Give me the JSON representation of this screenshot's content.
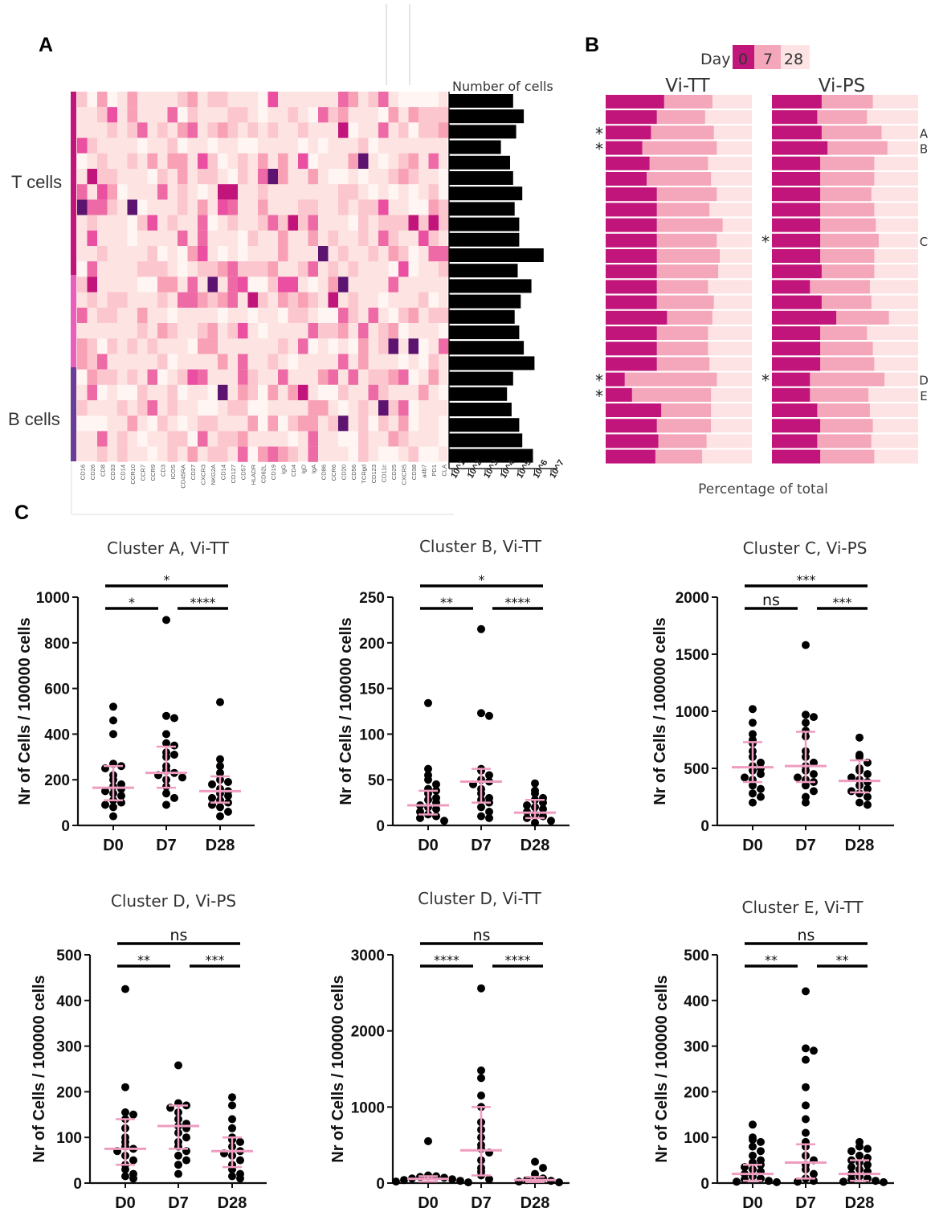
{
  "panels": {
    "a": "A",
    "b": "B",
    "c": "C"
  },
  "heatmap": {
    "row_labels": [
      "T cells",
      "B cells"
    ],
    "markers": [
      "CD16",
      "CD26",
      "CD8",
      "CD33",
      "CD14",
      "CCR10",
      "CCR7",
      "CCR9",
      "CD3",
      "ICOS",
      "CD45RA",
      "CD27",
      "CXCR3",
      "NKG2A",
      "CD14",
      "CD127",
      "CD57",
      "HLADR",
      "CD62L",
      "CD19",
      "IgG",
      "CD4",
      "IgD",
      "IgA",
      "CD86",
      "CCR6",
      "CD20",
      "CD56",
      "TCRgd",
      "CD123",
      "CD11c",
      "CD25",
      "CXCR5",
      "CD38",
      "a4b7",
      "PD1",
      "CLA"
    ],
    "bar_title": "Number of cells",
    "bar_ticks": [
      "10^1",
      "10^2",
      "10^3",
      "10^4",
      "10^5",
      "10^6",
      "10^7"
    ],
    "bar_log10_values": [
      4.8,
      5.5,
      5.0,
      4.0,
      4.6,
      4.8,
      5.4,
      4.9,
      5.2,
      5.2,
      6.8,
      5.1,
      6.0,
      5.3,
      4.9,
      5.2,
      5.5,
      6.2,
      4.8,
      4.4,
      4.7,
      5.2,
      5.4,
      6.1
    ]
  },
  "bars": {
    "legend_label": "Day",
    "legend_days": [
      "0",
      "7",
      "28"
    ],
    "colors": {
      "d0": "#c2157b",
      "d7": "#f4a6bb",
      "d28": "#fde3e3"
    },
    "groups": [
      "Vi-TT",
      "Vi-PS"
    ],
    "xlabel": "Percentage of total",
    "cluster_labels": [
      "A",
      "B",
      "C",
      "D",
      "E"
    ],
    "star": "*",
    "vitt_d0": [
      40,
      35,
      31,
      25,
      30,
      28,
      35,
      35,
      35,
      35,
      35,
      35,
      35,
      35,
      42,
      35,
      35,
      35,
      13,
      18,
      38,
      35,
      36,
      34
    ],
    "vitt_d7": [
      33,
      33,
      43,
      51,
      40,
      44,
      41,
      36,
      45,
      41,
      43,
      42,
      35,
      39,
      31,
      35,
      35,
      36,
      63,
      54,
      34,
      37,
      33,
      32
    ],
    "vips_d0": [
      34,
      31,
      34,
      38,
      33,
      33,
      33,
      33,
      33,
      33,
      33,
      34,
      26,
      34,
      44,
      33,
      33,
      33,
      26,
      26,
      31,
      33,
      31,
      33
    ],
    "vips_d7": [
      35,
      34,
      41,
      41,
      37,
      37,
      35,
      37,
      38,
      40,
      37,
      36,
      41,
      34,
      36,
      32,
      36,
      37,
      51,
      40,
      36,
      36,
      37,
      37
    ]
  },
  "chart_data": [
    {
      "type": "scatter",
      "title": "Cluster A, Vi-TT",
      "ylabel": "Nr of Cells / 100000 cells",
      "categories": [
        "D0",
        "D7",
        "D28"
      ],
      "ylim": [
        0,
        1000
      ],
      "yticks": [
        "0",
        "200",
        "400",
        "600",
        "800",
        "1000"
      ],
      "points": [
        [
          520,
          460,
          400,
          270,
          260,
          250,
          220,
          200,
          180,
          170,
          160,
          150,
          140,
          130,
          110,
          100,
          90,
          80,
          40
        ],
        [
          900,
          480,
          470,
          400,
          360,
          350,
          320,
          310,
          300,
          260,
          240,
          230,
          220,
          210,
          200,
          170,
          140,
          120,
          90
        ],
        [
          540,
          290,
          260,
          230,
          200,
          190,
          180,
          160,
          150,
          140,
          130,
          120,
          110,
          100,
          90,
          80,
          60,
          40
        ]
      ],
      "medians": [
        165,
        230,
        150
      ],
      "q1": [
        110,
        165,
        100
      ],
      "q3": [
        260,
        345,
        215
      ],
      "sig": [
        {
          "from": "D0",
          "to": "D28",
          "label": "*"
        },
        {
          "from": "D0",
          "to": "D7",
          "label": "*"
        },
        {
          "from": "D7",
          "to": "D28",
          "label": "****"
        }
      ]
    },
    {
      "type": "scatter",
      "title": "Cluster B, Vi-TT",
      "ylabel": "Nr of Cells / 100000 cells",
      "categories": [
        "D0",
        "D7",
        "D28"
      ],
      "ylim": [
        0,
        250
      ],
      "yticks": [
        "0",
        "50",
        "100",
        "150",
        "200",
        "250"
      ],
      "points": [
        [
          134,
          62,
          55,
          50,
          45,
          40,
          38,
          35,
          30,
          28,
          25,
          22,
          20,
          18,
          15,
          12,
          10,
          8,
          5
        ],
        [
          215,
          123,
          120,
          62,
          60,
          55,
          50,
          48,
          45,
          40,
          35,
          30,
          28,
          25,
          20,
          15,
          10,
          8
        ],
        [
          46,
          38,
          35,
          30,
          28,
          25,
          22,
          20,
          18,
          15,
          12,
          10,
          8,
          5,
          3
        ]
      ],
      "medians": [
        22,
        48,
        14
      ],
      "q1": [
        12,
        25,
        8
      ],
      "q3": [
        38,
        62,
        28
      ],
      "sig": [
        {
          "from": "D0",
          "to": "D28",
          "label": "*"
        },
        {
          "from": "D0",
          "to": "D7",
          "label": "**"
        },
        {
          "from": "D7",
          "to": "D28",
          "label": "****"
        }
      ]
    },
    {
      "type": "scatter",
      "title": "Cluster C, Vi-PS",
      "ylabel": "Nr of Cells / 100000 cells",
      "categories": [
        "D0",
        "D7",
        "D28"
      ],
      "ylim": [
        0,
        2000
      ],
      "yticks": [
        "0",
        "500",
        "1000",
        "1500",
        "2000"
      ],
      "points": [
        [
          1020,
          900,
          800,
          750,
          720,
          650,
          600,
          550,
          520,
          500,
          480,
          450,
          420,
          400,
          350,
          320,
          280,
          250,
          200
        ],
        [
          1580,
          970,
          950,
          900,
          830,
          780,
          650,
          600,
          550,
          520,
          480,
          450,
          420,
          400,
          380,
          350,
          300,
          250,
          200
        ],
        [
          770,
          620,
          600,
          550,
          500,
          480,
          450,
          420,
          400,
          380,
          350,
          320,
          300,
          280,
          250,
          200,
          180
        ]
      ],
      "medians": [
        510,
        520,
        390
      ],
      "q1": [
        380,
        380,
        290
      ],
      "q3": [
        730,
        820,
        570
      ],
      "sig": [
        {
          "from": "D0",
          "to": "D28",
          "label": "***"
        },
        {
          "from": "D0",
          "to": "D7",
          "label": "ns"
        },
        {
          "from": "D7",
          "to": "D28",
          "label": "***"
        }
      ]
    },
    {
      "type": "scatter",
      "title": "Cluster D, Vi-PS",
      "ylabel": "Nr of Cells / 100000 cells",
      "categories": [
        "D0",
        "D7",
        "D28"
      ],
      "ylim": [
        0,
        500
      ],
      "yticks": [
        "0",
        "100",
        "200",
        "300",
        "400",
        "500"
      ],
      "points": [
        [
          425,
          210,
          155,
          150,
          140,
          120,
          100,
          90,
          80,
          75,
          70,
          60,
          50,
          40,
          30,
          20,
          15,
          10
        ],
        [
          258,
          175,
          170,
          165,
          155,
          140,
          130,
          125,
          120,
          110,
          100,
          90,
          80,
          70,
          60,
          50,
          40,
          20
        ],
        [
          188,
          170,
          140,
          120,
          100,
          95,
          90,
          80,
          70,
          65,
          60,
          50,
          40,
          30,
          20,
          15,
          10
        ]
      ],
      "medians": [
        75,
        125,
        70
      ],
      "q1": [
        40,
        75,
        35
      ],
      "q3": [
        140,
        170,
        100
      ],
      "sig": [
        {
          "from": "D0",
          "to": "D28",
          "label": "ns"
        },
        {
          "from": "D0",
          "to": "D7",
          "label": "**"
        },
        {
          "from": "D7",
          "to": "D28",
          "label": "***"
        }
      ]
    },
    {
      "type": "scatter",
      "title": "Cluster D,  Vi-TT",
      "ylabel": "Nr of Cells / 100000 cells",
      "categories": [
        "D0",
        "D7",
        "D28"
      ],
      "ylim": [
        0,
        3000
      ],
      "yticks": [
        "0",
        "1000",
        "2000",
        "3000"
      ],
      "points": [
        [
          550,
          100,
          90,
          80,
          70,
          60,
          50,
          40,
          30,
          20,
          10
        ],
        [
          2560,
          1480,
          1380,
          1150,
          1000,
          800,
          700,
          600,
          500,
          450,
          400,
          300,
          200,
          150,
          100,
          50
        ],
        [
          280,
          200,
          120,
          80,
          60,
          40,
          30,
          20,
          10
        ]
      ],
      "medians": [
        55,
        430,
        40
      ],
      "q1": [
        20,
        100,
        15
      ],
      "q3": [
        90,
        1000,
        80
      ],
      "sig": [
        {
          "from": "D0",
          "to": "D28",
          "label": "ns"
        },
        {
          "from": "D0",
          "to": "D7",
          "label": "****"
        },
        {
          "from": "D7",
          "to": "D28",
          "label": "****"
        }
      ]
    },
    {
      "type": "scatter",
      "title": "Cluster E, Vi-TT",
      "ylabel": "Nr of Cells / 100000 cells",
      "categories": [
        "D0",
        "D7",
        "D28"
      ],
      "ylim": [
        0,
        500
      ],
      "yticks": [
        "0",
        "100",
        "200",
        "300",
        "400",
        "500"
      ],
      "points": [
        [
          128,
          100,
          95,
          90,
          80,
          70,
          60,
          50,
          45,
          40,
          35,
          30,
          25,
          20,
          15,
          10,
          8,
          5,
          3,
          2
        ],
        [
          420,
          295,
          290,
          270,
          210,
          170,
          140,
          110,
          90,
          80,
          60,
          50,
          40,
          30,
          20,
          10,
          5,
          3
        ],
        [
          90,
          80,
          75,
          70,
          60,
          55,
          50,
          45,
          40,
          35,
          30,
          25,
          20,
          15,
          10,
          8,
          5,
          3,
          2
        ]
      ],
      "medians": [
        20,
        45,
        20
      ],
      "q1": [
        5,
        10,
        5
      ],
      "q3": [
        40,
        85,
        50
      ],
      "sig": [
        {
          "from": "D0",
          "to": "D28",
          "label": "ns"
        },
        {
          "from": "D0",
          "to": "D7",
          "label": "**"
        },
        {
          "from": "D7",
          "to": "D28",
          "label": "**"
        }
      ]
    }
  ]
}
